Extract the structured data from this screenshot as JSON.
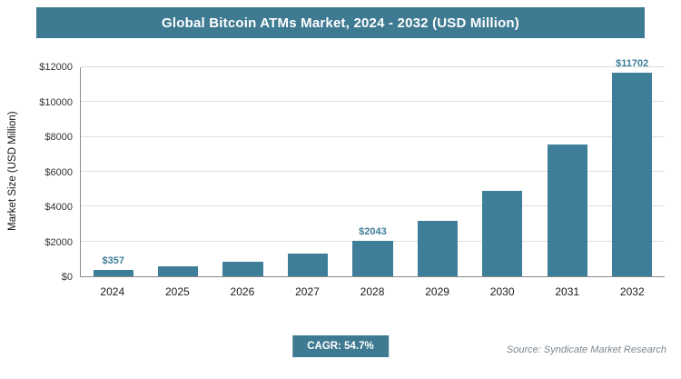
{
  "header": {
    "title": "Global Bitcoin ATMs Market, 2024 - 2032 (USD Million)"
  },
  "colors": {
    "accent": "#3e7a91",
    "bar": "#3f7e98",
    "grid": "#dedede",
    "axis": "#8a8a8a",
    "source_text": "#7c8790"
  },
  "chart_data": {
    "type": "bar",
    "title": "Global Bitcoin ATMs Market, 2024 - 2032 (USD Million)",
    "categories": [
      "2024",
      "2025",
      "2026",
      "2027",
      "2028",
      "2029",
      "2030",
      "2031",
      "2032"
    ],
    "values": [
      357,
      552,
      854,
      1321,
      2043,
      3161,
      4890,
      7565,
      11702
    ],
    "value_labels": [
      "$357",
      null,
      null,
      null,
      "$2043",
      null,
      null,
      null,
      "$11702"
    ],
    "xlabel": "",
    "ylabel": "Market Size (USD Million)",
    "ylim": [
      0,
      12000
    ],
    "ytick_step": 2000,
    "ytick_labels": [
      "$0",
      "$2000",
      "$4000",
      "$6000",
      "$8000",
      "$10000",
      "$12000"
    ],
    "grid": true,
    "legend_position": "none"
  },
  "footer": {
    "cagr_badge": "CAGR: 54.7%",
    "source": "Source: Syndicate Market Research"
  }
}
